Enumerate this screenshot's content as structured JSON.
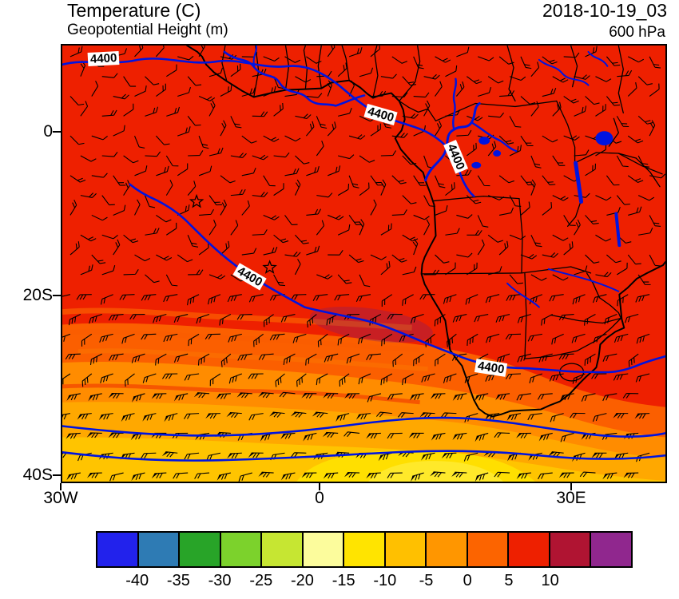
{
  "header": {
    "title": "Temperature (C)",
    "subtitle": "Geopotential Height (m)",
    "datetime": "2018-10-19_03",
    "level": "600 hPa"
  },
  "axes": {
    "y": [
      "0",
      "20S",
      "40S"
    ],
    "x": [
      "30W",
      "0",
      "30E"
    ]
  },
  "contours": {
    "labels": [
      "4400",
      "4400",
      "4400",
      "4400",
      "4400"
    ]
  },
  "chart_data": {
    "type": "heatmap",
    "title": "Temperature (C)",
    "overlay_contour": {
      "variable": "Geopotential Height (m)",
      "labeled_value": 4400,
      "label_occurrences": 5,
      "color": "#0014e0"
    },
    "wind_barbs": true,
    "valid_time": "2018-10-19_03",
    "pressure_level": "600 hPa",
    "region": "Africa and South Atlantic",
    "x_axis": {
      "ticks": [
        "30W",
        "0",
        "30E"
      ]
    },
    "y_axis": {
      "ticks": [
        "0",
        "20S",
        "40S"
      ]
    },
    "colorbar": {
      "units": "C",
      "tick_labels": [
        "-40",
        "-35",
        "-30",
        "-25",
        "-20",
        "-15",
        "-10",
        "-5",
        "0",
        "5",
        "10"
      ],
      "cell_colors": [
        "#2222ec",
        "#2e7bb4",
        "#28a428",
        "#7cd22c",
        "#c6e632",
        "#fcfc9c",
        "#ffe400",
        "#ffc000",
        "#ff9600",
        "#fc6400",
        "#ee2000",
        "#b01432",
        "#90278e"
      ]
    },
    "field_summary": {
      "dominant_fill": "#ee2000",
      "south_gradient_fills": [
        "#fb5f00",
        "#ff8c00",
        "#ffa800",
        "#ffc400",
        "#ffdf00"
      ]
    },
    "markers": [
      {
        "symbol": "star",
        "lon": -14.4,
        "lat": -8.5
      },
      {
        "symbol": "star",
        "lon": -5.8,
        "lat": -16.6
      }
    ]
  }
}
